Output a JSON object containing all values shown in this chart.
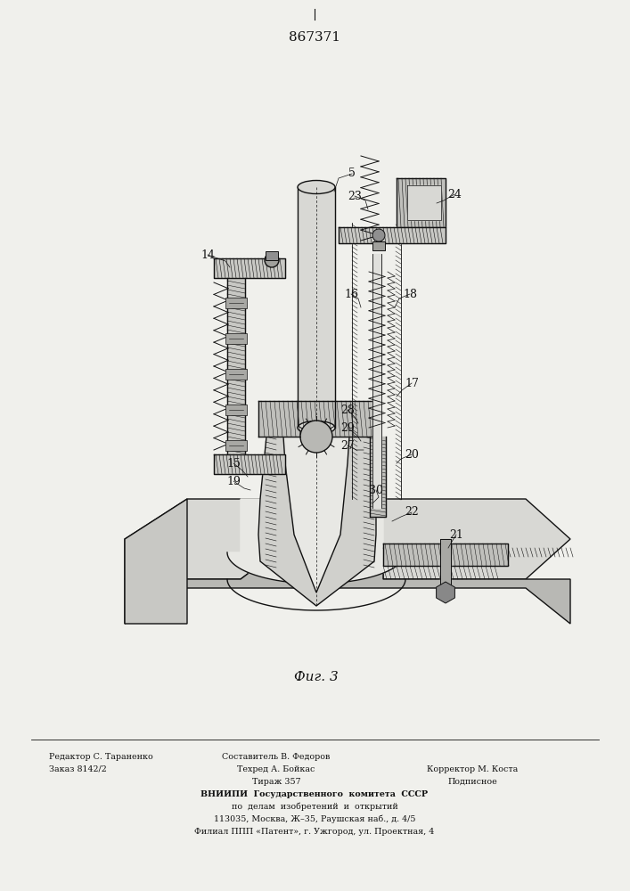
{
  "patent_number": "867371",
  "figure_caption": "Фиг. 3",
  "bg_color": "#f0f0ec",
  "line_color": "#111111",
  "hatch_color": "#444444",
  "fill_light": "#e8e8e4",
  "fill_mid": "#d0d0cc",
  "fill_dark": "#b0b0ac",
  "footer": {
    "col1_row1": "Редактор С. Тараненко",
    "col2_row1": "Составитель В. Федоров",
    "col1_row2": "Заказ 8142/2",
    "col2_row2": "Техред А. Бойкас",
    "col3_row2": "Корректор М. Коста",
    "col2_row3": "Тираж 357",
    "col3_row3": "Подписное",
    "line4": "ВНИИПИ  Государственного  комитета  СССР",
    "line5": "по  делам  изобретений  и  открытий",
    "line6": "113035, Москва, Ж–35, Раушская наб., д. 4/5",
    "line7": "Филиал ППП «Патент», г. Ужгород, ул. Проектная, 4"
  }
}
